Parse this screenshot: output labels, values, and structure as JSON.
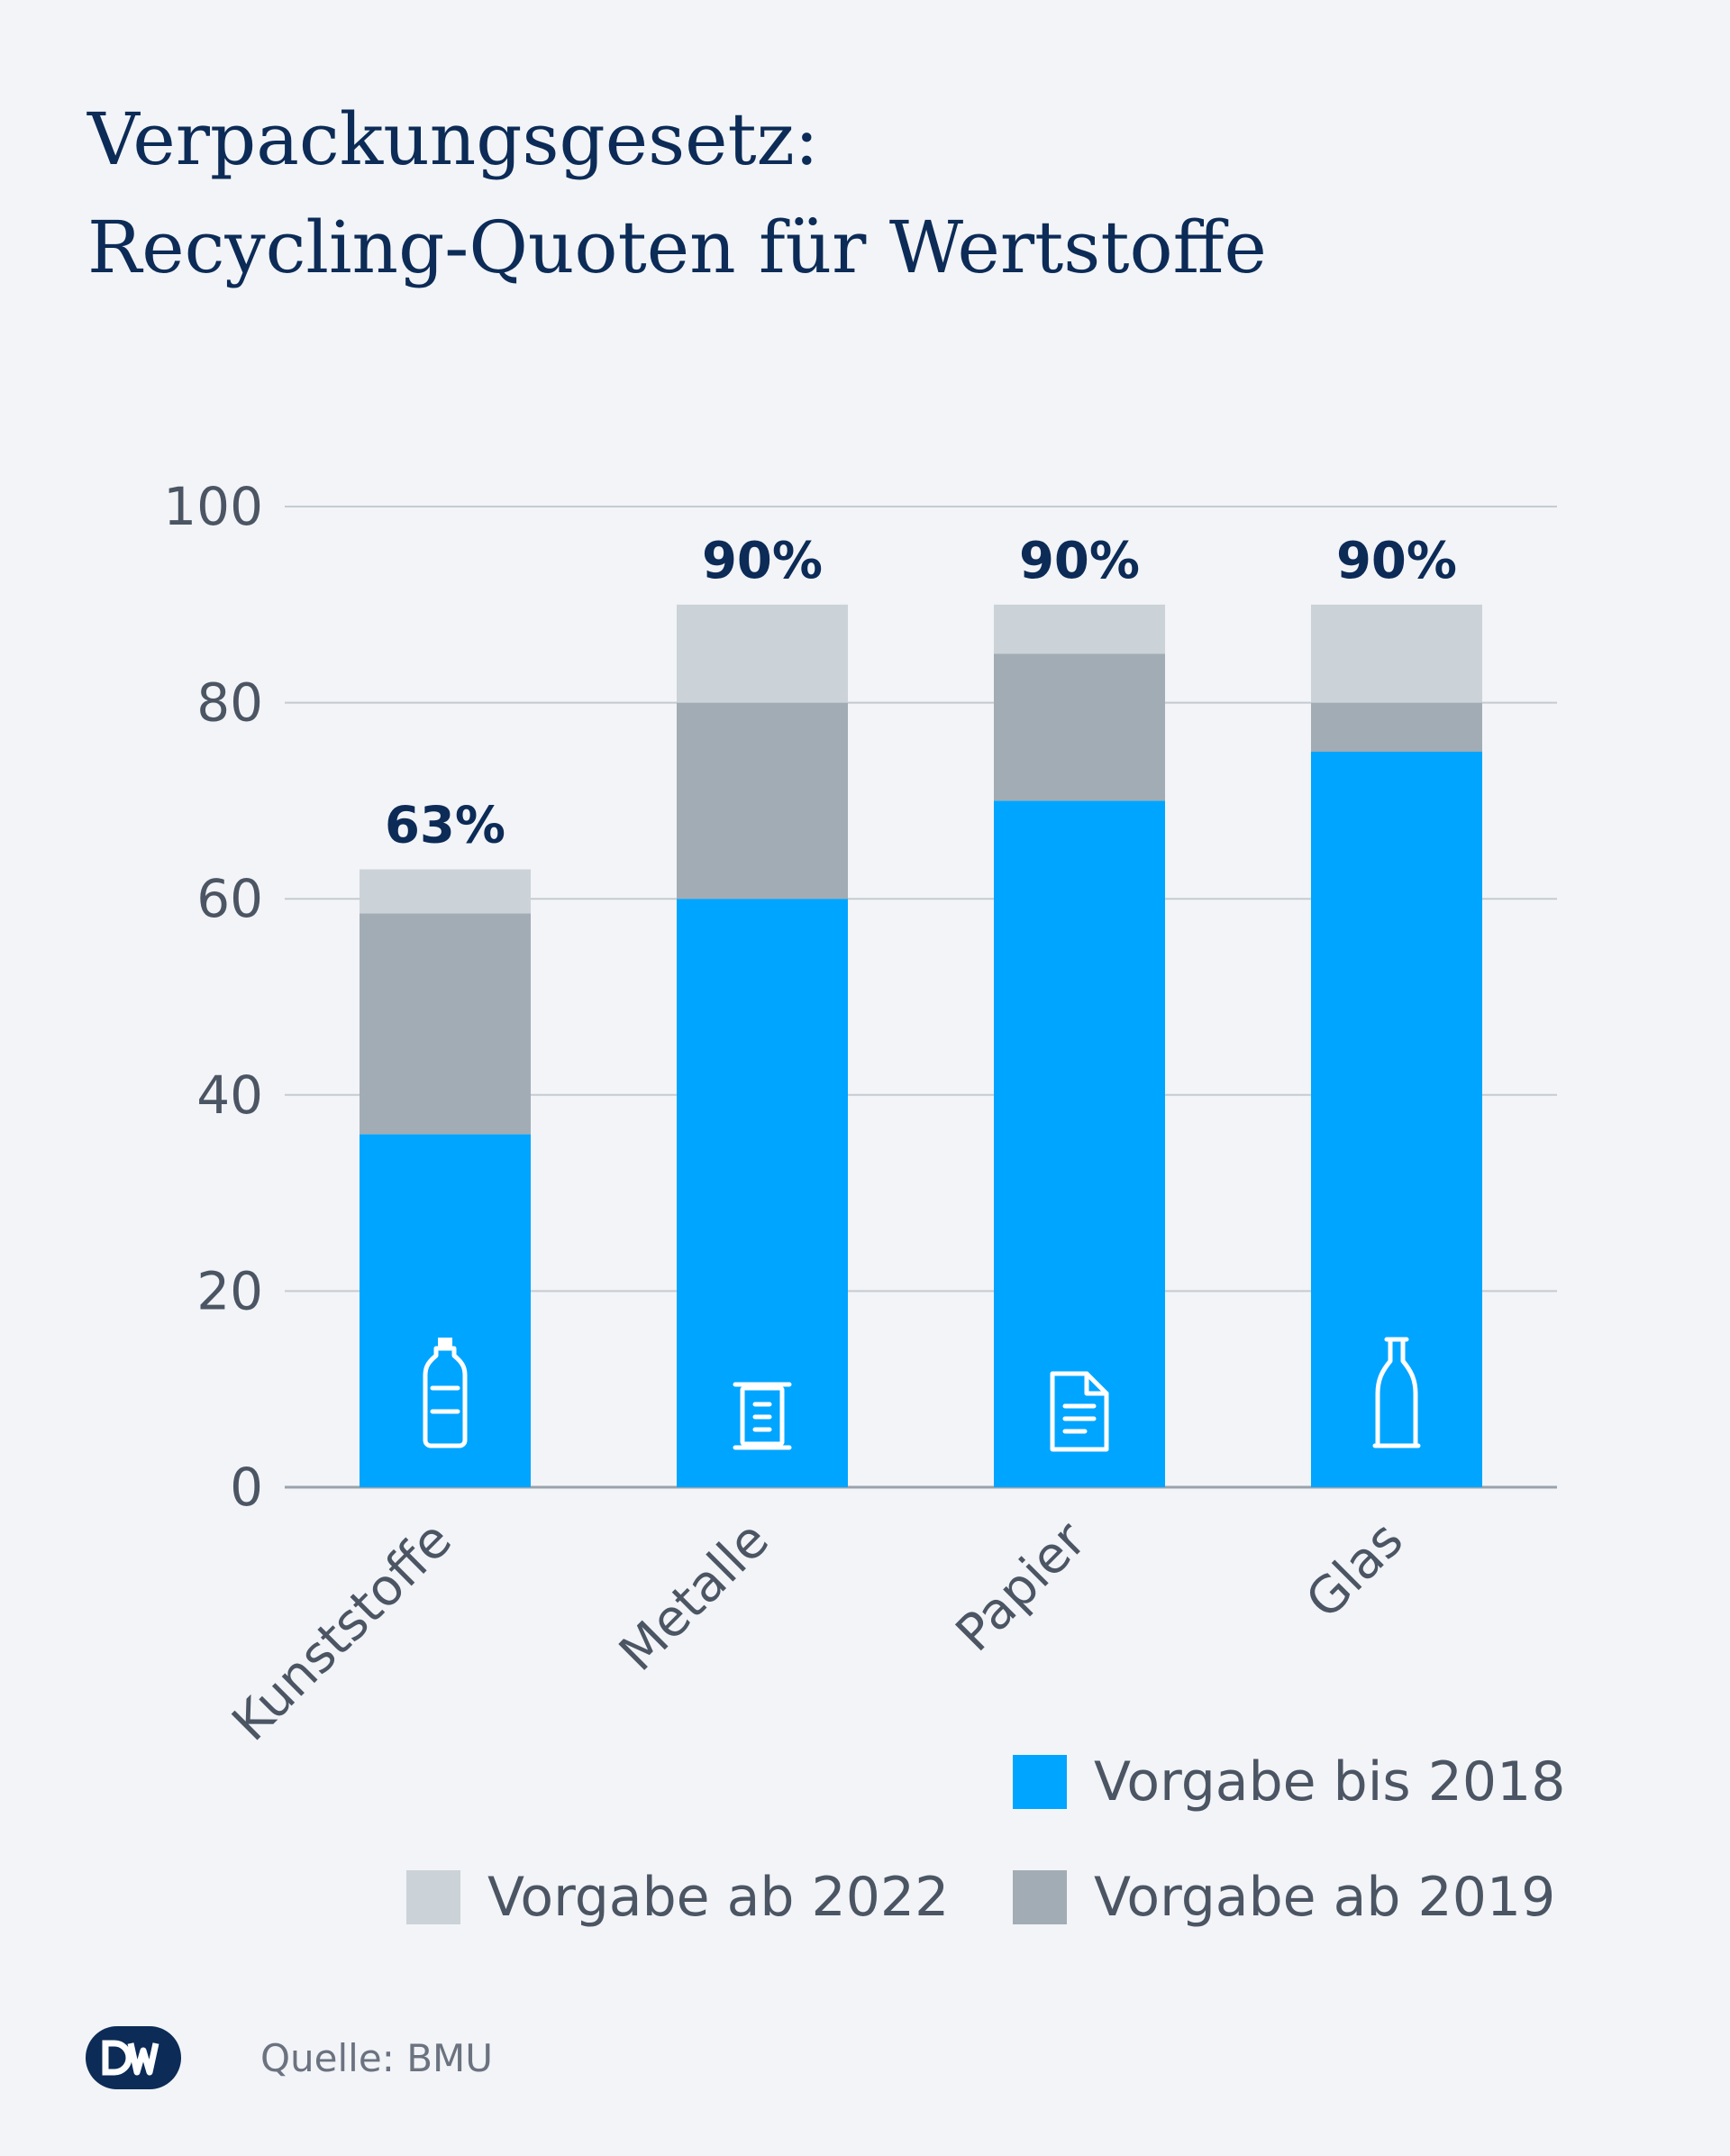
{
  "title": {
    "line1": "Verpackungsgesetz:",
    "line2": "Recycling-Quoten für Wertstoffe"
  },
  "chart_data": {
    "type": "bar",
    "stacked": true,
    "categories": [
      "Kunststoffe",
      "Metalle",
      "Papier",
      "Glas"
    ],
    "category_icons": [
      "bottle-icon",
      "can-icon",
      "document-icon",
      "glass-bottle-icon"
    ],
    "totals": [
      "63%",
      "90%",
      "90%",
      "90%"
    ],
    "series": [
      {
        "name": "Vorgabe bis 2018",
        "values": [
          36,
          60,
          70,
          75
        ],
        "color": "#00a5ff"
      },
      {
        "name": "Vorgabe ab 2019",
        "values": [
          22.5,
          20,
          15,
          5
        ],
        "color": "#a2acb4"
      },
      {
        "name": "Vorgabe ab 2022",
        "values": [
          4.5,
          10,
          5,
          10
        ],
        "color": "#cbd2d8"
      }
    ],
    "yticks": [
      0,
      20,
      40,
      60,
      80,
      100
    ],
    "ylim": [
      0,
      100
    ],
    "grid": true,
    "legend_position": "bottom-right"
  },
  "legend": {
    "items": [
      {
        "label": "Vorgabe bis 2018",
        "color": "#00a5ff"
      },
      {
        "label": "Vorgabe ab 2022",
        "color": "#cbd2d8"
      },
      {
        "label": "Vorgabe ab 2019",
        "color": "#a2acb4"
      }
    ]
  },
  "footer": {
    "logo": "DW",
    "source": "Quelle: BMU"
  }
}
